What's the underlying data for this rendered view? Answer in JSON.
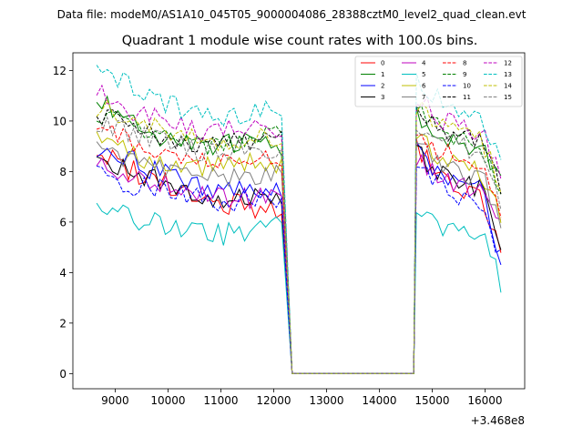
{
  "figure": {
    "suptitle": "Data file: modeM0/AS1A10_045T05_9000004086_28388cztM0_level2_quad_clean.evt",
    "offset_text": "+3.468e8"
  },
  "chart_data": {
    "type": "line",
    "title": "Quadrant 1 module wise count rates with 100.0s bins.",
    "xlabel": "",
    "ylabel": "",
    "x_offset": 346800000,
    "xlim": [
      8200,
      16750
    ],
    "ylim": [
      -0.6,
      12.7
    ],
    "xticks": [
      9000,
      10000,
      11000,
      12000,
      13000,
      14000,
      15000,
      16000
    ],
    "yticks": [
      0,
      2,
      4,
      6,
      8,
      10,
      12
    ],
    "grid": false,
    "legend_position": "top-right",
    "x_seg1": [
      8650,
      12350
    ],
    "x_gap": [
      12350,
      14650
    ],
    "x_seg2": [
      14650,
      16350
    ],
    "series": [
      {
        "name": "0",
        "color": "#ff0000",
        "dash": "solid",
        "seg1": [
          8.9,
          8.1,
          7.6,
          7.2,
          6.8,
          6.6,
          6.6
        ],
        "seg2": [
          9.0,
          7.8,
          7.4,
          7.1,
          4.5
        ]
      },
      {
        "name": "1",
        "color": "#008000",
        "dash": "solid",
        "seg1": [
          10.7,
          10.2,
          9.4,
          9.0,
          9.0,
          9.4,
          9.0
        ],
        "seg2": [
          10.1,
          9.5,
          9.2,
          9.0,
          7.5
        ]
      },
      {
        "name": "2",
        "color": "#0000ff",
        "dash": "solid",
        "seg1": [
          9.0,
          8.5,
          7.9,
          7.6,
          7.2,
          7.3,
          7.1
        ],
        "seg2": [
          9.0,
          8.0,
          7.6,
          7.3,
          4.0
        ]
      },
      {
        "name": "3",
        "color": "#000000",
        "dash": "solid",
        "seg1": [
          8.6,
          8.0,
          7.6,
          7.1,
          7.0,
          7.0,
          6.9
        ],
        "seg2": [
          8.8,
          7.9,
          7.5,
          7.3,
          5.0
        ]
      },
      {
        "name": "4",
        "color": "#bf00bf",
        "dash": "solid",
        "seg1": [
          8.4,
          7.8,
          7.5,
          7.2,
          6.9,
          7.0,
          7.1
        ],
        "seg2": [
          8.6,
          7.8,
          7.4,
          7.2,
          5.5
        ]
      },
      {
        "name": "5",
        "color": "#00bfbf",
        "dash": "solid",
        "seg1": [
          6.8,
          6.2,
          5.9,
          5.6,
          5.5,
          5.7,
          5.9
        ],
        "seg2": [
          6.8,
          5.9,
          5.8,
          5.6,
          3.3
        ]
      },
      {
        "name": "6",
        "color": "#bfbf00",
        "dash": "solid",
        "seg1": [
          9.4,
          8.7,
          8.4,
          8.1,
          8.2,
          8.4,
          8.1
        ],
        "seg2": [
          9.4,
          8.6,
          8.1,
          8.0,
          6.0
        ]
      },
      {
        "name": "7",
        "color": "#808080",
        "dash": "solid",
        "seg1": [
          9.2,
          8.5,
          8.2,
          7.9,
          7.7,
          7.9,
          7.8
        ],
        "seg2": [
          9.2,
          8.3,
          7.9,
          7.8,
          5.8
        ]
      },
      {
        "name": "8",
        "color": "#ff0000",
        "dash": "dashed",
        "seg1": [
          9.7,
          9.2,
          8.7,
          8.5,
          8.4,
          8.6,
          8.6
        ],
        "seg2": [
          9.6,
          8.8,
          8.5,
          8.4,
          6.3
        ]
      },
      {
        "name": "9",
        "color": "#008000",
        "dash": "dashed",
        "seg1": [
          10.4,
          9.8,
          9.3,
          9.1,
          9.0,
          9.4,
          9.4
        ],
        "seg2": [
          10.4,
          9.7,
          9.3,
          9.1,
          7.0
        ]
      },
      {
        "name": "10",
        "color": "#0000ff",
        "dash": "dashed",
        "seg1": [
          7.9,
          7.5,
          7.3,
          7.0,
          6.8,
          6.9,
          6.9
        ],
        "seg2": [
          8.2,
          7.4,
          7.1,
          6.9,
          4.2
        ]
      },
      {
        "name": "11",
        "color": "#000000",
        "dash": "dashed",
        "seg1": [
          10.4,
          9.8,
          9.4,
          9.2,
          9.0,
          9.3,
          9.3
        ],
        "seg2": [
          10.4,
          9.6,
          9.3,
          9.1,
          7.0
        ]
      },
      {
        "name": "12",
        "color": "#bf00bf",
        "dash": "dashed",
        "seg1": [
          11.3,
          10.5,
          10.0,
          9.7,
          9.6,
          9.8,
          9.8
        ],
        "seg2": [
          11.0,
          10.1,
          9.8,
          9.6,
          7.5
        ]
      },
      {
        "name": "13",
        "color": "#00bfbf",
        "dash": "dashed",
        "seg1": [
          11.9,
          11.4,
          10.8,
          10.4,
          10.2,
          10.4,
          10.6
        ],
        "seg2": [
          11.8,
          10.8,
          10.5,
          10.2,
          8.2
        ]
      },
      {
        "name": "14",
        "color": "#bfbf00",
        "dash": "dashed",
        "seg1": [
          10.6,
          10.2,
          9.7,
          9.4,
          9.2,
          9.4,
          9.3
        ],
        "seg2": [
          10.5,
          9.9,
          9.6,
          9.3,
          7.2
        ]
      },
      {
        "name": "15",
        "color": "#808080",
        "dash": "dashed",
        "seg1": [
          10.0,
          9.5,
          9.2,
          8.9,
          8.7,
          8.9,
          8.8
        ],
        "seg2": [
          10.0,
          9.3,
          9.0,
          8.8,
          6.5
        ]
      }
    ]
  }
}
